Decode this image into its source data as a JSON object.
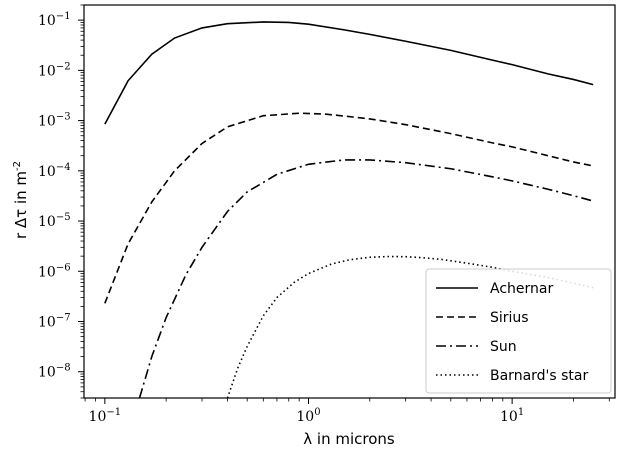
{
  "chart_data": {
    "type": "line",
    "xlabel": "λ in microns",
    "ylabel": "r Δτ in m^-2",
    "xscale": "log",
    "yscale": "log",
    "xlim": [
      0.079,
      32
    ],
    "ylim": [
      3e-09,
      0.2
    ],
    "grid": false,
    "legend_position": "bottom-right",
    "x_ticks": [
      {
        "value": 0.1,
        "base": "10",
        "exp": "−1"
      },
      {
        "value": 1,
        "base": "10",
        "exp": "0"
      },
      {
        "value": 10,
        "base": "10",
        "exp": "1"
      }
    ],
    "y_ticks": [
      {
        "value": 0.1,
        "base": "10",
        "exp": "−1"
      },
      {
        "value": 0.01,
        "base": "10",
        "exp": "−2"
      },
      {
        "value": 0.001,
        "base": "10",
        "exp": "−3"
      },
      {
        "value": 0.0001,
        "base": "10",
        "exp": "−4"
      },
      {
        "value": 1e-05,
        "base": "10",
        "exp": "−5"
      },
      {
        "value": 1e-06,
        "base": "10",
        "exp": "−6"
      },
      {
        "value": 1e-07,
        "base": "10",
        "exp": "−7"
      },
      {
        "value": 1e-08,
        "base": "10",
        "exp": "−8"
      }
    ],
    "series": [
      {
        "name": "Achernar",
        "dash": "solid",
        "x": [
          0.1,
          0.13,
          0.17,
          0.22,
          0.3,
          0.4,
          0.6,
          0.8,
          1.0,
          1.5,
          2,
          3,
          5,
          8,
          10,
          15,
          20,
          25
        ],
        "y": [
          0.00085,
          0.0062,
          0.021,
          0.044,
          0.07,
          0.085,
          0.092,
          0.09,
          0.083,
          0.064,
          0.052,
          0.038,
          0.025,
          0.016,
          0.013,
          0.0085,
          0.0066,
          0.0052
        ]
      },
      {
        "name": "Sirius",
        "dash": "dashed",
        "x": [
          0.1,
          0.13,
          0.17,
          0.22,
          0.3,
          0.4,
          0.6,
          0.9,
          1.2,
          1.5,
          2,
          3,
          5,
          8,
          10,
          15,
          20,
          25
        ],
        "y": [
          2.3e-07,
          3.5e-06,
          2.4e-05,
          0.0001,
          0.00035,
          0.00075,
          0.00125,
          0.0014,
          0.00135,
          0.00123,
          0.00108,
          0.00083,
          0.00055,
          0.00036,
          0.0003,
          0.0002,
          0.00015,
          0.000125
        ]
      },
      {
        "name": "Sun",
        "dash": "dashdot",
        "x": [
          0.148,
          0.17,
          0.2,
          0.25,
          0.3,
          0.4,
          0.5,
          0.7,
          1.0,
          1.5,
          2,
          3,
          5,
          8,
          10,
          15,
          20,
          25
        ],
        "y": [
          3e-09,
          2e-08,
          1.2e-07,
          8.5e-07,
          3e-06,
          1.55e-05,
          3.8e-05,
          8.5e-05,
          0.000135,
          0.000165,
          0.000165,
          0.000145,
          0.00011,
          7.6e-05,
          6.3e-05,
          4.3e-05,
          3.2e-05,
          2.5e-05
        ]
      },
      {
        "name": "Barnard's star",
        "dash": "dotted",
        "x": [
          0.4,
          0.45,
          0.5,
          0.6,
          0.7,
          0.85,
          1.0,
          1.3,
          1.6,
          2.0,
          2.5,
          3.0,
          3.6,
          4.5,
          6,
          8,
          10,
          15,
          20,
          25
        ],
        "y": [
          3e-09,
          1.2e-08,
          3.2e-08,
          1.3e-07,
          3e-07,
          6e-07,
          9e-07,
          1.4e-06,
          1.7e-06,
          1.9e-06,
          1.97e-06,
          1.95e-06,
          1.87e-06,
          1.72e-06,
          1.45e-06,
          1.2e-06,
          1e-06,
          7.5e-07,
          5.8e-07,
          4.7e-07
        ]
      }
    ]
  }
}
